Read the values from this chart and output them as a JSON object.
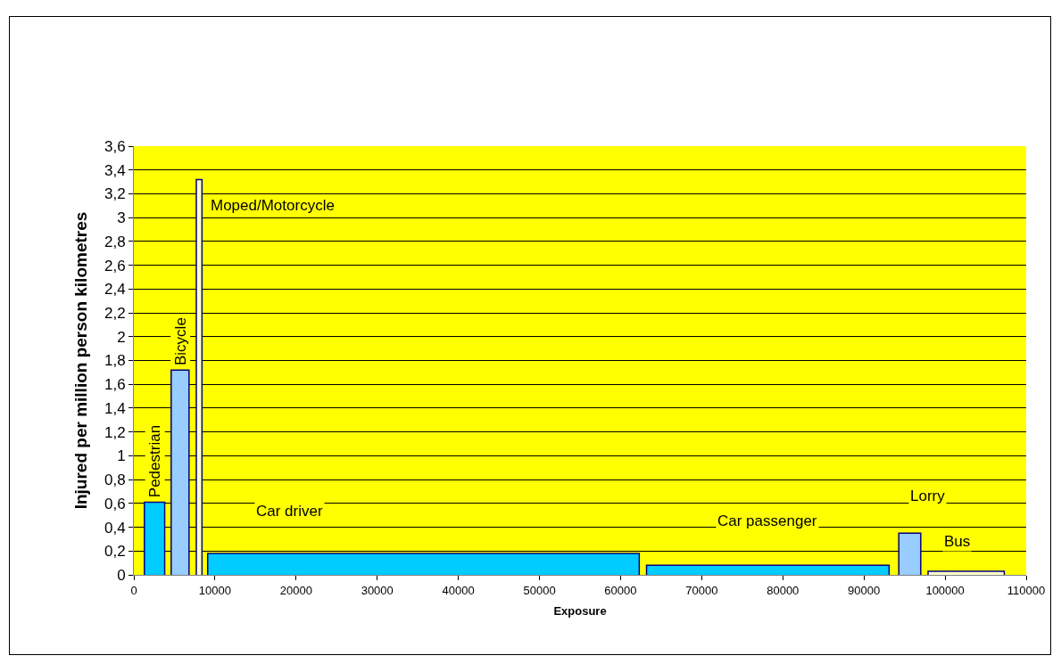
{
  "chart_data": {
    "type": "area",
    "xlabel": "Exposure",
    "ylabel": "Injured per million person kilometres",
    "series": [
      {
        "name": "Pedestrian",
        "color": "#00ccff",
        "x": [
          1300,
          3800
        ],
        "values": [
          0.61,
          0.61
        ]
      },
      {
        "name": "Bicycle",
        "color": "#99ccff",
        "x": [
          4600,
          6800
        ],
        "values": [
          1.72,
          1.72
        ]
      },
      {
        "name": "Moped/Motorcycle",
        "color": "#ffffcc",
        "x": [
          7700,
          8400
        ],
        "values": [
          3.32,
          3.32
        ]
      },
      {
        "name": "Car driver",
        "color": "#00ccff",
        "x": [
          9100,
          62300
        ],
        "values": [
          0.18,
          0.18
        ]
      },
      {
        "name": "Car passenger",
        "color": "#00ccff",
        "x": [
          63200,
          93100
        ],
        "values": [
          0.08,
          0.08
        ]
      },
      {
        "name": "Lorry",
        "color": "#99ccff",
        "x": [
          94300,
          97000
        ],
        "values": [
          0.35,
          0.35
        ]
      },
      {
        "name": "Bus",
        "color": "#ffffcc",
        "x": [
          97900,
          107300
        ],
        "values": [
          0.03,
          0.03
        ]
      }
    ],
    "xlim": [
      0,
      110000
    ],
    "xticks": [
      0,
      10000,
      20000,
      30000,
      40000,
      50000,
      60000,
      70000,
      80000,
      90000,
      100000,
      110000
    ],
    "ylim": [
      0,
      3.6
    ],
    "yticks": [
      0,
      {
        "value": 0.2,
        "label": "0,2"
      },
      {
        "value": 0.4,
        "label": "0,4"
      },
      {
        "value": 0.6,
        "label": "0,6"
      },
      {
        "value": 0.8,
        "label": "0,8"
      },
      1,
      {
        "value": 1.2,
        "label": "1,2"
      },
      {
        "value": 1.4,
        "label": "1,4"
      },
      {
        "value": 1.6,
        "label": "1,6"
      },
      {
        "value": 1.8,
        "label": "1,8"
      },
      2,
      {
        "value": 2.2,
        "label": "2,2"
      },
      {
        "value": 2.4,
        "label": "2,4"
      },
      {
        "value": 2.6,
        "label": "2,6"
      },
      {
        "value": 2.8,
        "label": "2,8"
      },
      3,
      {
        "value": 3.2,
        "label": "3,2"
      },
      {
        "value": 3.4,
        "label": "3,4"
      },
      {
        "value": 3.6,
        "label": "3,6"
      }
    ],
    "grid": "y",
    "legend": false
  }
}
